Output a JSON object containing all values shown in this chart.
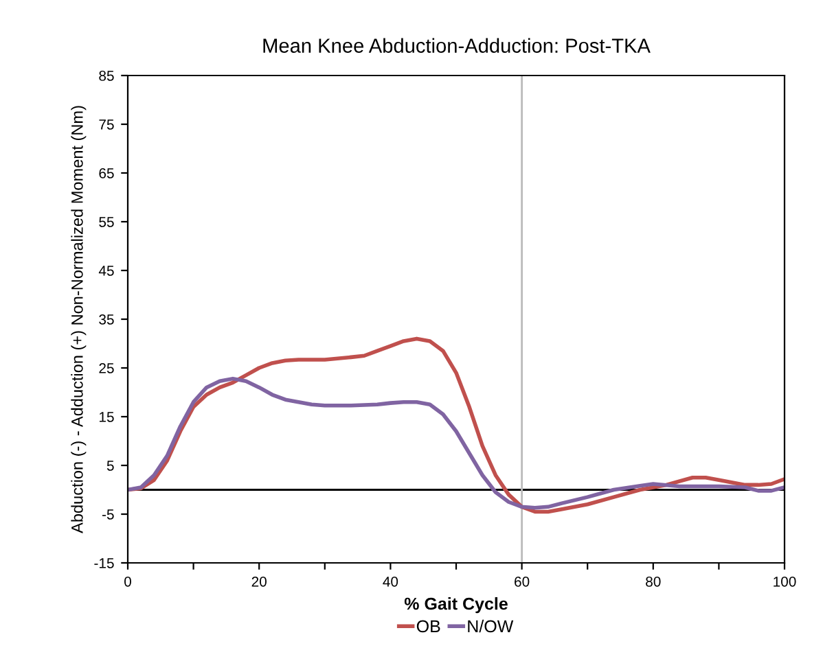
{
  "chart_data": {
    "type": "line",
    "title": "Mean Knee Abduction-Adduction: Post-TKA",
    "xlabel": "% Gait Cycle",
    "ylabel": "Abduction (-) - Adduction (+) Non-Normalized Moment (Nm)",
    "series": [
      {
        "name": "OB",
        "color": "#c0504d",
        "x": [
          0,
          2,
          4,
          6,
          8,
          10,
          12,
          14,
          16,
          18,
          20,
          22,
          24,
          26,
          30,
          34,
          36,
          38,
          40,
          42,
          44,
          46,
          48,
          50,
          52,
          54,
          56,
          58,
          60,
          62,
          64,
          66,
          70,
          74,
          78,
          82,
          86,
          88,
          90,
          94,
          96,
          98,
          100
        ],
        "values": [
          0,
          0.3,
          2,
          6,
          12,
          17,
          19.5,
          21,
          22,
          23.5,
          25,
          26,
          26.5,
          26.7,
          26.7,
          27.2,
          27.5,
          28.5,
          29.5,
          30.5,
          31,
          30.5,
          28.5,
          24,
          17,
          9,
          3,
          -1,
          -3.5,
          -4.5,
          -4.5,
          -4,
          -3,
          -1.5,
          0,
          1,
          2.5,
          2.5,
          2,
          1,
          1,
          1.2,
          2.2
        ]
      },
      {
        "name": "N/OW",
        "color": "#8064a2",
        "x": [
          0,
          2,
          4,
          6,
          8,
          10,
          12,
          14,
          16,
          18,
          20,
          22,
          24,
          26,
          28,
          30,
          34,
          38,
          40,
          42,
          44,
          46,
          48,
          50,
          52,
          54,
          56,
          58,
          60,
          62,
          64,
          66,
          70,
          74,
          78,
          80,
          84,
          90,
          94,
          96,
          98,
          100
        ],
        "values": [
          0,
          0.5,
          3,
          7,
          13,
          18,
          21,
          22.3,
          22.8,
          22.3,
          21,
          19.5,
          18.5,
          18,
          17.5,
          17.3,
          17.3,
          17.5,
          17.8,
          18,
          18,
          17.5,
          15.5,
          12,
          7.5,
          3,
          -0.5,
          -2.5,
          -3.5,
          -3.7,
          -3.5,
          -2.8,
          -1.5,
          0,
          0.8,
          1.2,
          0.7,
          0.7,
          0.5,
          -0.2,
          -0.2,
          0.5
        ]
      }
    ],
    "xlim": [
      0,
      100
    ],
    "xticks": [
      0,
      {
        "value": 10,
        "label": null
      },
      20,
      {
        "value": 30,
        "label": null
      },
      40,
      {
        "value": 50,
        "label": null
      },
      60,
      {
        "value": 70,
        "label": null
      },
      80,
      {
        "value": 90,
        "label": null
      },
      100
    ],
    "ylim": [
      -15,
      85
    ],
    "yticks": [
      -15,
      -5,
      5,
      15,
      25,
      35,
      45,
      55,
      65,
      75,
      85
    ],
    "ref_lines": [
      {
        "axis": "y",
        "value": 0,
        "color": "#000000"
      },
      {
        "axis": "x",
        "value": 60,
        "color": "#bbbbbb"
      }
    ],
    "grid": false,
    "legend": "bottom",
    "marker": "none",
    "line_style": "solid"
  }
}
